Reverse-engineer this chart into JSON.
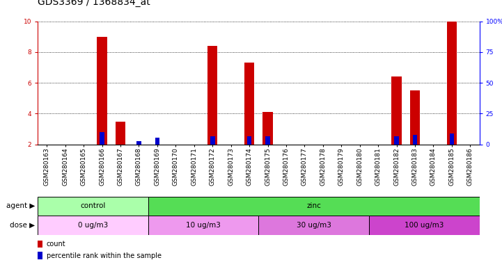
{
  "title": "GDS3369 / 1368834_at",
  "samples": [
    "GSM280163",
    "GSM280164",
    "GSM280165",
    "GSM280166",
    "GSM280167",
    "GSM280168",
    "GSM280169",
    "GSM280170",
    "GSM280171",
    "GSM280172",
    "GSM280173",
    "GSM280174",
    "GSM280175",
    "GSM280176",
    "GSM280177",
    "GSM280178",
    "GSM280179",
    "GSM280180",
    "GSM280181",
    "GSM280182",
    "GSM280183",
    "GSM280184",
    "GSM280185",
    "GSM280186"
  ],
  "count_values": [
    2.0,
    2.0,
    2.0,
    9.0,
    3.5,
    2.0,
    2.0,
    2.0,
    2.0,
    8.4,
    2.0,
    7.3,
    4.1,
    2.0,
    2.0,
    2.0,
    2.0,
    2.0,
    2.0,
    6.4,
    5.5,
    2.0,
    10.0,
    2.0
  ],
  "percentile_values": [
    2.0,
    2.0,
    2.0,
    2.8,
    2.0,
    2.2,
    2.45,
    2.0,
    2.0,
    2.55,
    2.0,
    2.55,
    2.55,
    2.0,
    2.0,
    2.0,
    2.0,
    2.0,
    2.0,
    2.55,
    2.6,
    2.0,
    2.7,
    2.0
  ],
  "count_color": "#cc0000",
  "percentile_color": "#0000cc",
  "ylim": [
    2,
    10
  ],
  "yticks": [
    2,
    4,
    6,
    8,
    10
  ],
  "right_yticks_labels": [
    "0",
    "25",
    "50",
    "75",
    "100%"
  ],
  "agent_groups": [
    {
      "label": "control",
      "start": 0,
      "end": 6,
      "color": "#aaffaa"
    },
    {
      "label": "zinc",
      "start": 6,
      "end": 24,
      "color": "#55dd55"
    }
  ],
  "dose_groups": [
    {
      "label": "0 ug/m3",
      "start": 0,
      "end": 6,
      "color": "#ffccff"
    },
    {
      "label": "10 ug/m3",
      "start": 6,
      "end": 12,
      "color": "#ee99ee"
    },
    {
      "label": "30 ug/m3",
      "start": 12,
      "end": 18,
      "color": "#dd77dd"
    },
    {
      "label": "100 ug/m3",
      "start": 18,
      "end": 24,
      "color": "#cc44cc"
    }
  ],
  "legend_items": [
    {
      "label": "count",
      "color": "#cc0000"
    },
    {
      "label": "percentile rank within the sample",
      "color": "#0000cc"
    }
  ],
  "title_fontsize": 10,
  "tick_fontsize": 6.5,
  "label_fontsize": 7.5,
  "row_label_fontsize": 7.5
}
